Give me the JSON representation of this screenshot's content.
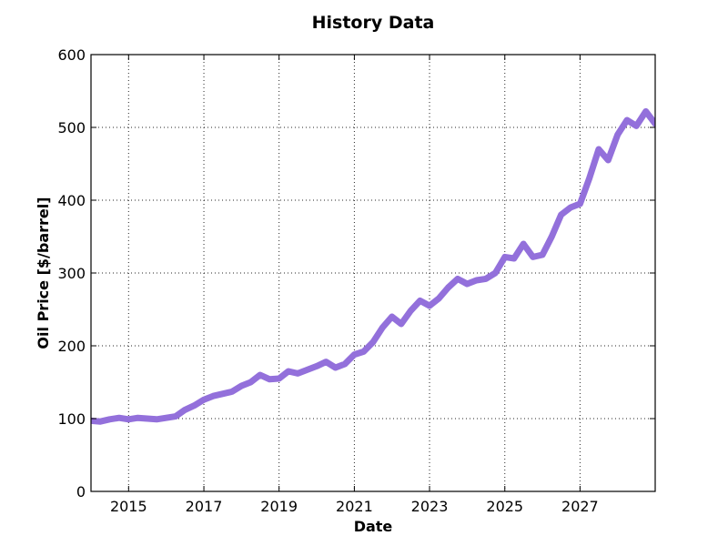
{
  "chart_data": {
    "type": "line",
    "title": "History Data",
    "xlabel": "Date",
    "ylabel": "Oil Price [$/barrel]",
    "xlim": [
      "2014-01-01",
      "2028-12-31"
    ],
    "ylim": [
      0,
      600
    ],
    "grid": true,
    "x_tick_labels": [
      "2015",
      "2017",
      "2019",
      "2021",
      "2023",
      "2025",
      "2027"
    ],
    "y_tick_labels": [
      "0",
      "100",
      "200",
      "300",
      "400",
      "500",
      "600"
    ],
    "line_color": "#9370DB",
    "series": [
      {
        "x": [
          "2014-01-01",
          "2014-04-01",
          "2014-07-01",
          "2014-10-01",
          "2015-01-01",
          "2015-04-01",
          "2015-07-01",
          "2015-10-01",
          "2016-01-01",
          "2016-04-01",
          "2016-07-01",
          "2016-10-01",
          "2017-01-01",
          "2017-04-01",
          "2017-07-01",
          "2017-10-01",
          "2018-01-01",
          "2018-04-01",
          "2018-07-01",
          "2018-10-01",
          "2019-01-01",
          "2019-04-01",
          "2019-07-01",
          "2019-10-01",
          "2020-01-01",
          "2020-04-01",
          "2020-07-01",
          "2020-10-01",
          "2021-01-01",
          "2021-04-01",
          "2021-07-01",
          "2021-10-01",
          "2022-01-01",
          "2022-04-01",
          "2022-07-01",
          "2022-10-01",
          "2023-01-01",
          "2023-04-01",
          "2023-07-01",
          "2023-10-01",
          "2024-01-01",
          "2024-04-01",
          "2024-07-01",
          "2024-10-01",
          "2025-01-01",
          "2025-04-01",
          "2025-07-01",
          "2025-10-01",
          "2026-01-01",
          "2026-04-01",
          "2026-07-01",
          "2026-10-01",
          "2027-01-01",
          "2027-04-01",
          "2027-07-01",
          "2027-10-01",
          "2028-01-01",
          "2028-04-01",
          "2028-07-01",
          "2028-10-01",
          "2028-12-31"
        ],
        "values": [
          97,
          96,
          99,
          101,
          99,
          101,
          100,
          99,
          101,
          103,
          112,
          118,
          126,
          131,
          134,
          137,
          145,
          150,
          160,
          154,
          155,
          165,
          162,
          167,
          172,
          178,
          170,
          175,
          188,
          192,
          205,
          225,
          240,
          230,
          248,
          262,
          255,
          265,
          280,
          292,
          285,
          290,
          292,
          300,
          322,
          320,
          340,
          322,
          325,
          350,
          380,
          390,
          395,
          430,
          470,
          455,
          490,
          510,
          502,
          522,
          505
        ]
      }
    ]
  }
}
